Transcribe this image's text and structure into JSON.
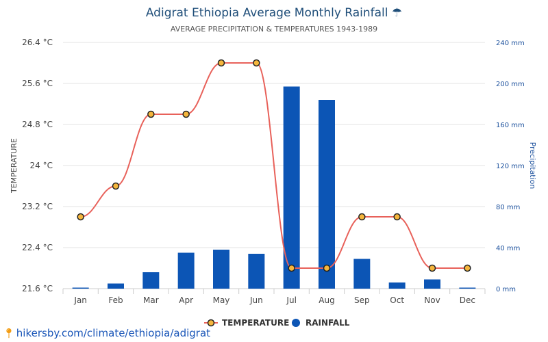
{
  "chart_data": {
    "type": "bar+line",
    "title": "Adigrat Ethiopia Average Monthly Rainfall",
    "title_icon": "☂",
    "subtitle": "AVERAGE PRECIPITATION & TEMPERATURES 1943-1989",
    "categories": [
      "Jan",
      "Feb",
      "Mar",
      "Apr",
      "May",
      "Jun",
      "Jul",
      "Aug",
      "Sep",
      "Oct",
      "Nov",
      "Dec"
    ],
    "series": [
      {
        "name": "TEMPERATURE",
        "type": "line",
        "axis": "left",
        "unit": "°C",
        "color": "#e8615a",
        "marker_color": "#f5b63c",
        "values": [
          23.0,
          23.6,
          25.0,
          25.0,
          26.0,
          26.0,
          22.0,
          22.0,
          23.0,
          23.0,
          22.0,
          22.0
        ]
      },
      {
        "name": "RAINFALL",
        "type": "bar",
        "axis": "right",
        "unit": "mm",
        "color": "#0c55b5",
        "values": [
          1,
          5,
          16,
          35,
          38,
          34,
          197,
          184,
          29,
          6,
          9,
          1
        ]
      }
    ],
    "y_left": {
      "label": "TEMPERATURE",
      "ticks": [
        "21.6 °C",
        "22.4 °C",
        "23.2 °C",
        "24 °C",
        "24.8 °C",
        "25.6 °C",
        "26.4 °C"
      ],
      "ylim": [
        21.6,
        26.4
      ]
    },
    "y_right": {
      "label": "Precipitation",
      "ticks": [
        "0 mm",
        "40 mm",
        "80 mm",
        "120 mm",
        "160 mm",
        "200 mm",
        "240 mm"
      ],
      "ylim": [
        0,
        240
      ]
    },
    "grid": true,
    "legend_position": "bottom-center"
  },
  "source": {
    "text": "hikersby.com/climate/ethiopia/adigrat",
    "icon": "map-pin-icon"
  }
}
